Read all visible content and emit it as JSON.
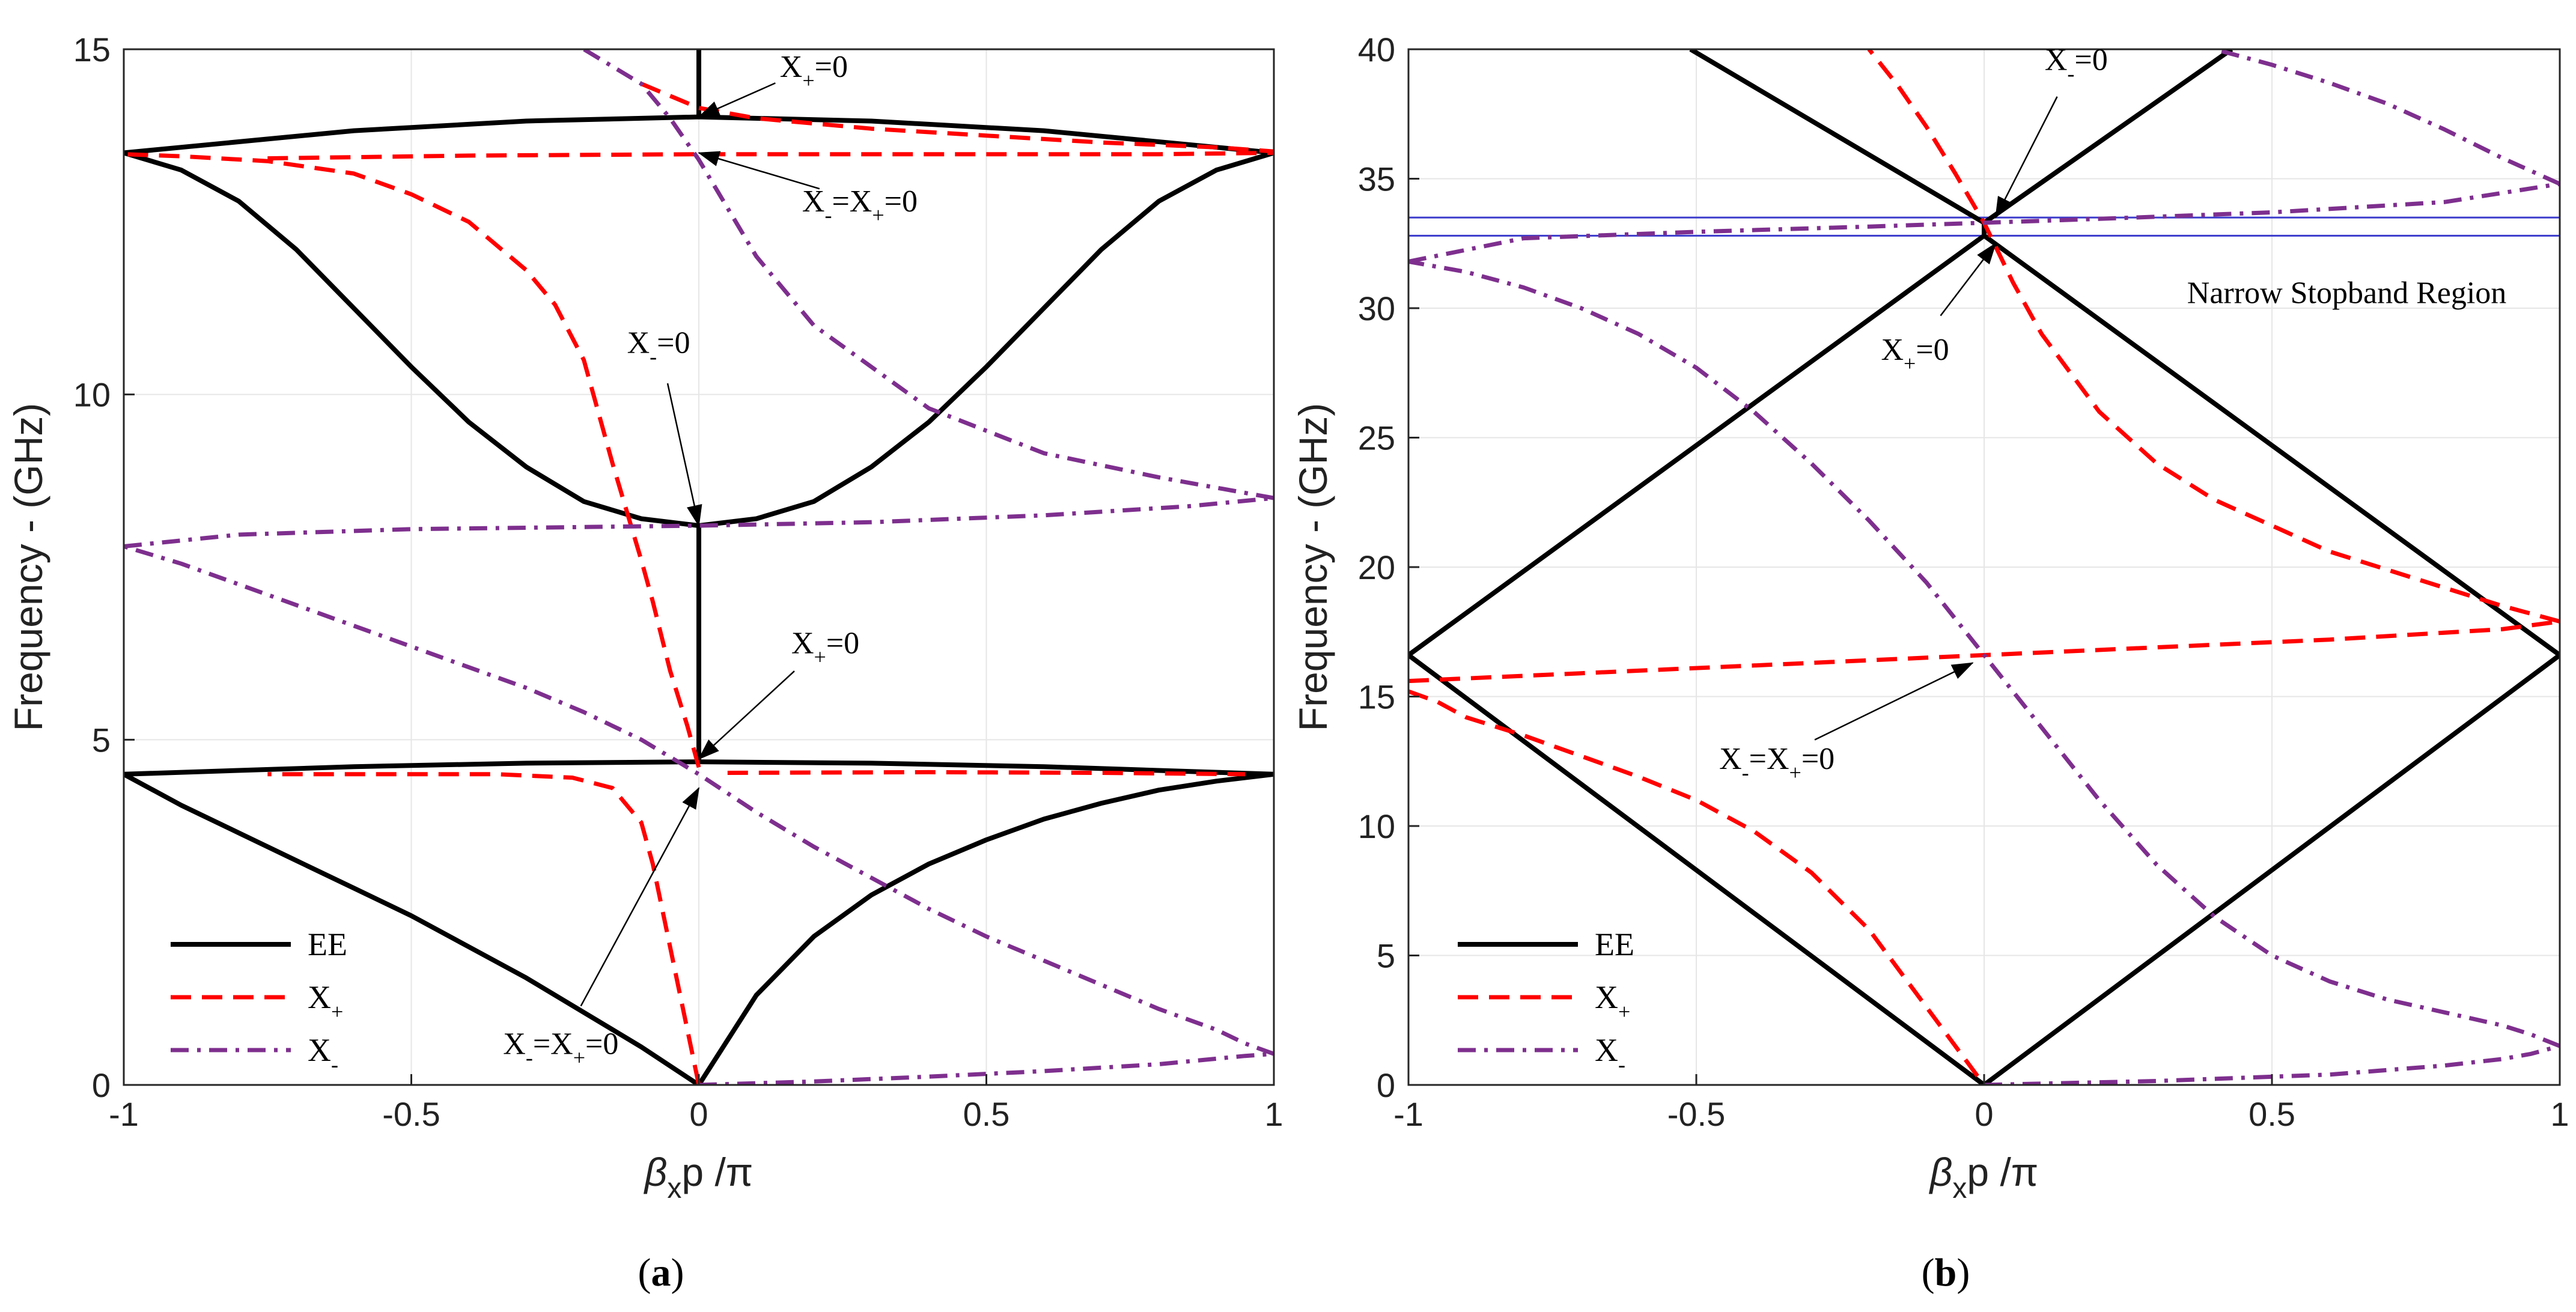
{
  "chart_data": [
    {
      "panel_label": "(a)",
      "caption": {
        "open": "(",
        "letter": "a",
        "close": ")"
      },
      "type": "line",
      "xlabel": {
        "beta": "β",
        "x": "x",
        "p": "p",
        "pi": "/π"
      },
      "ylabel": "Frequency - (GHz)",
      "xlim": [
        -1,
        1
      ],
      "ylim": [
        0,
        15
      ],
      "xticks": [
        -1,
        -0.5,
        0,
        0.5,
        1
      ],
      "xtick_labels": [
        "-1",
        "-0.5",
        "0",
        "0.5",
        "1"
      ],
      "yticks": [
        0,
        5,
        10,
        15
      ],
      "ytick_labels": [
        "0",
        "5",
        "10",
        "15"
      ],
      "grid": true,
      "legend": {
        "position": "bottom-left",
        "entries": [
          {
            "label": "EE",
            "sub": "",
            "color": "#000000",
            "style": "solid"
          },
          {
            "label": "X",
            "sub": "+",
            "color": "#ff0000",
            "style": "dashed"
          },
          {
            "label": "X",
            "sub": "-",
            "color": "#7e2f8e",
            "style": "dashdot"
          }
        ]
      },
      "series": [
        {
          "name": "EE",
          "color": "#000000",
          "style": "solid",
          "segments": [
            {
              "x": [
                -1,
                -0.9,
                -0.8,
                -0.7,
                -0.6,
                -0.5,
                -0.4,
                -0.3,
                -0.2,
                -0.1,
                0
              ],
              "y": [
                4.5,
                4.05,
                3.65,
                3.25,
                2.85,
                2.45,
                2.0,
                1.55,
                1.05,
                0.55,
                0
              ]
            },
            {
              "x": [
                0,
                0.1,
                0.2,
                0.3,
                0.4,
                0.5,
                0.6,
                0.7,
                0.8,
                0.9,
                1
              ],
              "y": [
                0,
                1.3,
                2.15,
                2.75,
                3.2,
                3.55,
                3.85,
                4.08,
                4.27,
                4.4,
                4.5
              ]
            },
            {
              "x": [
                -1,
                -0.6,
                -0.3,
                0,
                0.3,
                0.6,
                1
              ],
              "y": [
                4.5,
                4.61,
                4.66,
                4.68,
                4.66,
                4.61,
                4.5
              ]
            },
            {
              "x": [
                0,
                0
              ],
              "y": [
                4.68,
                8.1
              ]
            },
            {
              "x": [
                -1,
                -0.9,
                -0.8,
                -0.7,
                -0.6,
                -0.5,
                -0.4,
                -0.3,
                -0.2,
                -0.1,
                0
              ],
              "y": [
                13.5,
                13.25,
                12.8,
                12.1,
                11.25,
                10.4,
                9.6,
                8.95,
                8.45,
                8.2,
                8.1
              ]
            },
            {
              "x": [
                0,
                0.1,
                0.2,
                0.3,
                0.4,
                0.5,
                0.6,
                0.7,
                0.8,
                0.9,
                1
              ],
              "y": [
                8.1,
                8.2,
                8.45,
                8.95,
                9.6,
                10.4,
                11.25,
                12.1,
                12.8,
                13.25,
                13.5
              ]
            },
            {
              "x": [
                -1,
                -0.6,
                -0.3,
                0,
                0.3,
                0.6,
                1
              ],
              "y": [
                13.5,
                13.82,
                13.96,
                14.02,
                13.96,
                13.82,
                13.5
              ]
            },
            {
              "x": [
                0,
                0
              ],
              "y": [
                14.02,
                15
              ]
            }
          ]
        },
        {
          "name": "X+",
          "color": "#ff0000",
          "style": "dashed",
          "segments": [
            {
              "x": [
                0,
                -0.02,
                -0.04,
                -0.06,
                -0.08,
                -0.1,
                -0.15,
                -0.22,
                -0.35,
                -0.5,
                -0.75
              ],
              "y": [
                0,
                0.8,
                1.6,
                2.4,
                3.2,
                3.8,
                4.3,
                4.45,
                4.5,
                4.5,
                4.5
              ]
            },
            {
              "x": [
                0.05,
                0.4,
                0.7,
                0.95
              ],
              "y": [
                4.52,
                4.53,
                4.52,
                4.5
              ]
            },
            {
              "x": [
                0,
                -0.02,
                -0.05,
                -0.08,
                -0.1,
                -0.15,
                -0.2,
                -0.25,
                -0.3,
                -0.4,
                -0.5,
                -0.6,
                -0.75,
                -0.9,
                -1
              ],
              "y": [
                4.6,
                5.2,
                6.0,
                7.0,
                7.6,
                9.0,
                10.5,
                11.3,
                11.8,
                12.5,
                12.9,
                13.2,
                13.38,
                13.45,
                13.48
              ]
            },
            {
              "x": [
                -0.75,
                -0.4,
                0,
                0.4,
                0.8,
                1
              ],
              "y": [
                13.42,
                13.46,
                13.48,
                13.48,
                13.48,
                13.5
              ]
            },
            {
              "x": [
                -0.1,
                0,
                0.1,
                0.3,
                0.5,
                0.7,
                0.9,
                1
              ],
              "y": [
                14.5,
                14.15,
                14.0,
                13.85,
                13.75,
                13.65,
                13.58,
                13.52
              ]
            }
          ]
        },
        {
          "name": "X-",
          "color": "#7e2f8e",
          "style": "dashdot",
          "segments": [
            {
              "x": [
                0,
                0.2,
                0.4,
                0.6,
                0.8,
                0.9,
                0.95,
                1
              ],
              "y": [
                0,
                0.05,
                0.12,
                0.2,
                0.3,
                0.38,
                0.42,
                0.45
              ]
            },
            {
              "x": [
                1,
                0.95,
                0.9,
                0.8,
                0.7,
                0.6,
                0.5,
                0.4,
                0.3,
                0.2,
                0.1,
                0,
                -0.1,
                -0.2,
                -0.3,
                -0.4,
                -0.5,
                -0.6,
                -0.7,
                -0.8,
                -0.9,
                -1
              ],
              "y": [
                0.45,
                0.6,
                0.8,
                1.1,
                1.45,
                1.8,
                2.15,
                2.55,
                3.0,
                3.45,
                3.95,
                4.5,
                5.0,
                5.4,
                5.75,
                6.05,
                6.35,
                6.65,
                6.95,
                7.25,
                7.55,
                7.8
              ]
            },
            {
              "x": [
                -1,
                -0.8,
                -0.5,
                -0.2,
                0,
                0.3,
                0.6,
                0.85,
                1
              ],
              "y": [
                7.8,
                7.97,
                8.05,
                8.08,
                8.1,
                8.15,
                8.25,
                8.38,
                8.5
              ]
            },
            {
              "x": [
                1,
                0.8,
                0.6,
                0.4,
                0.2,
                0.1,
                0,
                -0.05,
                -0.1,
                -0.2
              ],
              "y": [
                8.5,
                8.8,
                9.15,
                9.8,
                11.0,
                12.0,
                13.4,
                14.0,
                14.5,
                15.0
              ]
            }
          ]
        }
      ],
      "annotations": [
        {
          "text": "X",
          "sub": "+",
          "tail": "=0",
          "point": [
            0,
            14.02
          ],
          "label_at": [
            0.2,
            14.6
          ]
        },
        {
          "text": "X",
          "sub": "-",
          "mid": "=X",
          "sub2": "+",
          "tail": "=0",
          "point": [
            0,
            13.5
          ],
          "label_at": [
            0.28,
            12.65
          ]
        },
        {
          "text": "X",
          "sub": "-",
          "tail": "=0",
          "point": [
            0,
            8.1
          ],
          "label_at": [
            -0.07,
            10.6
          ]
        },
        {
          "text": "X",
          "sub": "+",
          "tail": "=0",
          "point": [
            0,
            4.72
          ],
          "label_at": [
            0.22,
            6.25
          ]
        },
        {
          "text": "X",
          "sub": "-",
          "mid": "=X",
          "sub2": "+",
          "tail": "=0",
          "point": [
            0,
            4.3
          ],
          "label_at": [
            -0.24,
            0.45
          ]
        }
      ]
    },
    {
      "panel_label": "(b)",
      "caption": {
        "open": "(",
        "letter": "b",
        "close": ")"
      },
      "type": "line",
      "xlabel": {
        "beta": "β",
        "x": "x",
        "p": "p",
        "pi": "/π"
      },
      "ylabel": "Frequency - (GHz)",
      "xlim": [
        -1,
        1
      ],
      "ylim": [
        0,
        40
      ],
      "xticks": [
        -1,
        -0.5,
        0,
        0.5,
        1
      ],
      "xtick_labels": [
        "-1",
        "-0.5",
        "0",
        "0.5",
        "1"
      ],
      "yticks": [
        0,
        5,
        10,
        15,
        20,
        25,
        30,
        35,
        40
      ],
      "ytick_labels": [
        "0",
        "5",
        "10",
        "15",
        "20",
        "25",
        "30",
        "35",
        "40"
      ],
      "grid": true,
      "legend": {
        "position": "bottom-left",
        "entries": [
          {
            "label": "EE",
            "sub": "",
            "color": "#000000",
            "style": "solid"
          },
          {
            "label": "X",
            "sub": "+",
            "color": "#ff0000",
            "style": "dashed"
          },
          {
            "label": "X",
            "sub": "-",
            "color": "#7e2f8e",
            "style": "dashdot"
          }
        ]
      },
      "stopband": {
        "label": "Narrow Stopband Region",
        "y_low": 32.8,
        "y_high": 33.5,
        "color": "#3a3acc"
      },
      "series": [
        {
          "name": "EE",
          "color": "#000000",
          "style": "solid",
          "segments": [
            {
              "x": [
                0,
                -1,
                0,
                1,
                0
              ],
              "y": [
                0,
                16.6,
                32.8,
                16.6,
                0
              ]
            },
            {
              "x": [
                -0.51,
                0
              ],
              "y": [
                40,
                33.3
              ]
            },
            {
              "x": [
                0,
                0.43
              ],
              "y": [
                33.3,
                40
              ]
            },
            {
              "x": [
                0,
                0
              ],
              "y": [
                32.8,
                33.4
              ]
            }
          ]
        },
        {
          "name": "X+",
          "color": "#ff0000",
          "style": "dashed",
          "segments": [
            {
              "x": [
                -1,
                -0.95,
                -0.9,
                -0.8,
                -0.7,
                -0.6,
                -0.5,
                -0.4,
                -0.3,
                -0.2,
                -0.1,
                -0.05,
                0
              ],
              "y": [
                15.2,
                14.8,
                14.2,
                13.5,
                12.7,
                11.9,
                11.0,
                9.8,
                8.2,
                6.0,
                3.0,
                1.5,
                0
              ]
            },
            {
              "x": [
                -1,
                -0.7,
                -0.4,
                -0.1,
                0,
                0.3,
                0.6,
                0.9,
                1
              ],
              "y": [
                15.6,
                15.9,
                16.2,
                16.5,
                16.6,
                16.9,
                17.2,
                17.6,
                17.9
              ]
            },
            {
              "x": [
                1,
                0.9,
                0.8,
                0.6,
                0.4,
                0.3,
                0.2,
                0.1,
                0.05,
                0,
                -0.05,
                -0.1,
                -0.15,
                -0.2
              ],
              "y": [
                17.9,
                18.5,
                19.2,
                20.6,
                22.6,
                24.0,
                26.0,
                29.0,
                31.0,
                33.3,
                35.2,
                37.0,
                38.6,
                40.0
              ]
            }
          ]
        },
        {
          "name": "X-",
          "color": "#7e2f8e",
          "style": "dashdot",
          "segments": [
            {
              "x": [
                0,
                0.3,
                0.6,
                0.8,
                0.9,
                0.95,
                1
              ],
              "y": [
                0,
                0.15,
                0.4,
                0.75,
                1.0,
                1.2,
                1.5
              ]
            },
            {
              "x": [
                1,
                0.95,
                0.9,
                0.8,
                0.7,
                0.6,
                0.5,
                0.4,
                0.3,
                0.2,
                0.1,
                0,
                -0.1,
                -0.2,
                -0.3,
                -0.4,
                -0.5,
                -0.6,
                -0.7,
                -0.8,
                -0.9,
                -1
              ],
              "y": [
                1.5,
                1.95,
                2.3,
                2.8,
                3.3,
                4.0,
                5.0,
                6.5,
                8.5,
                11.0,
                13.8,
                16.6,
                19.4,
                21.8,
                24.0,
                26.0,
                27.7,
                29.0,
                30.0,
                30.8,
                31.4,
                31.8
              ]
            },
            {
              "x": [
                -1,
                -0.8,
                -0.5,
                -0.2,
                0,
                0.2,
                0.5,
                0.8,
                1
              ],
              "y": [
                31.8,
                32.7,
                32.95,
                33.15,
                33.3,
                33.45,
                33.7,
                34.1,
                34.8
              ]
            },
            {
              "x": [
                1,
                0.9,
                0.8,
                0.7,
                0.6,
                0.5,
                0.45,
                0.4
              ],
              "y": [
                34.8,
                35.8,
                36.9,
                37.9,
                38.7,
                39.4,
                39.7,
                40.0
              ]
            }
          ]
        }
      ],
      "annotations": [
        {
          "text": "X",
          "sub": "-",
          "tail": "=0",
          "point": [
            0.02,
            33.5
          ],
          "label_at": [
            0.16,
            39.2
          ]
        },
        {
          "text": "X",
          "sub": "+",
          "tail": "=0",
          "point": [
            0.02,
            32.5
          ],
          "label_at": [
            -0.12,
            28.0
          ]
        },
        {
          "text": "X",
          "sub": "-",
          "mid": "=X",
          "sub2": "+",
          "tail": "=0",
          "point": [
            -0.02,
            16.3
          ],
          "label_at": [
            -0.36,
            12.2
          ]
        }
      ]
    }
  ]
}
